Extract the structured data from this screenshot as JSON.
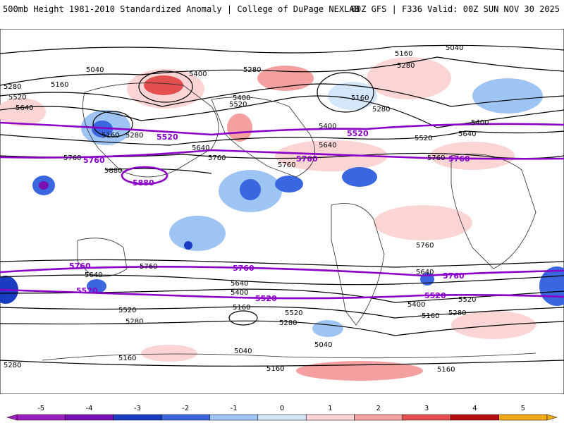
{
  "header": {
    "title": "500mb Height 1981-2010 Standardized Anomaly | College of DuPage NEXLAB",
    "run_info": "00Z GFS | F336 Valid: 00Z SUN NOV 30 2025"
  },
  "contour_labels": {
    "black": [
      "5040",
      "5160",
      "5280",
      "5400",
      "5520",
      "5640",
      "5760",
      "5880"
    ],
    "purple": [
      "5520",
      "5760",
      "5880"
    ]
  },
  "colorbar": {
    "ticks": [
      "-5",
      "-4",
      "-3",
      "-2",
      "-1",
      "0",
      "1",
      "2",
      "3",
      "4",
      "5"
    ],
    "colors": [
      "#9a20c0",
      "#7a10b0",
      "#1a3cc0",
      "#3a66e0",
      "#9ec4f4",
      "#d4e6fa",
      "#fbd4d4",
      "#f5a0a0",
      "#e45050",
      "#b81010",
      "#f2a818"
    ]
  },
  "colors": {
    "contour_black": "#000000",
    "contour_purple": "#8a00c8",
    "land_outline": "#2a2a2a"
  }
}
